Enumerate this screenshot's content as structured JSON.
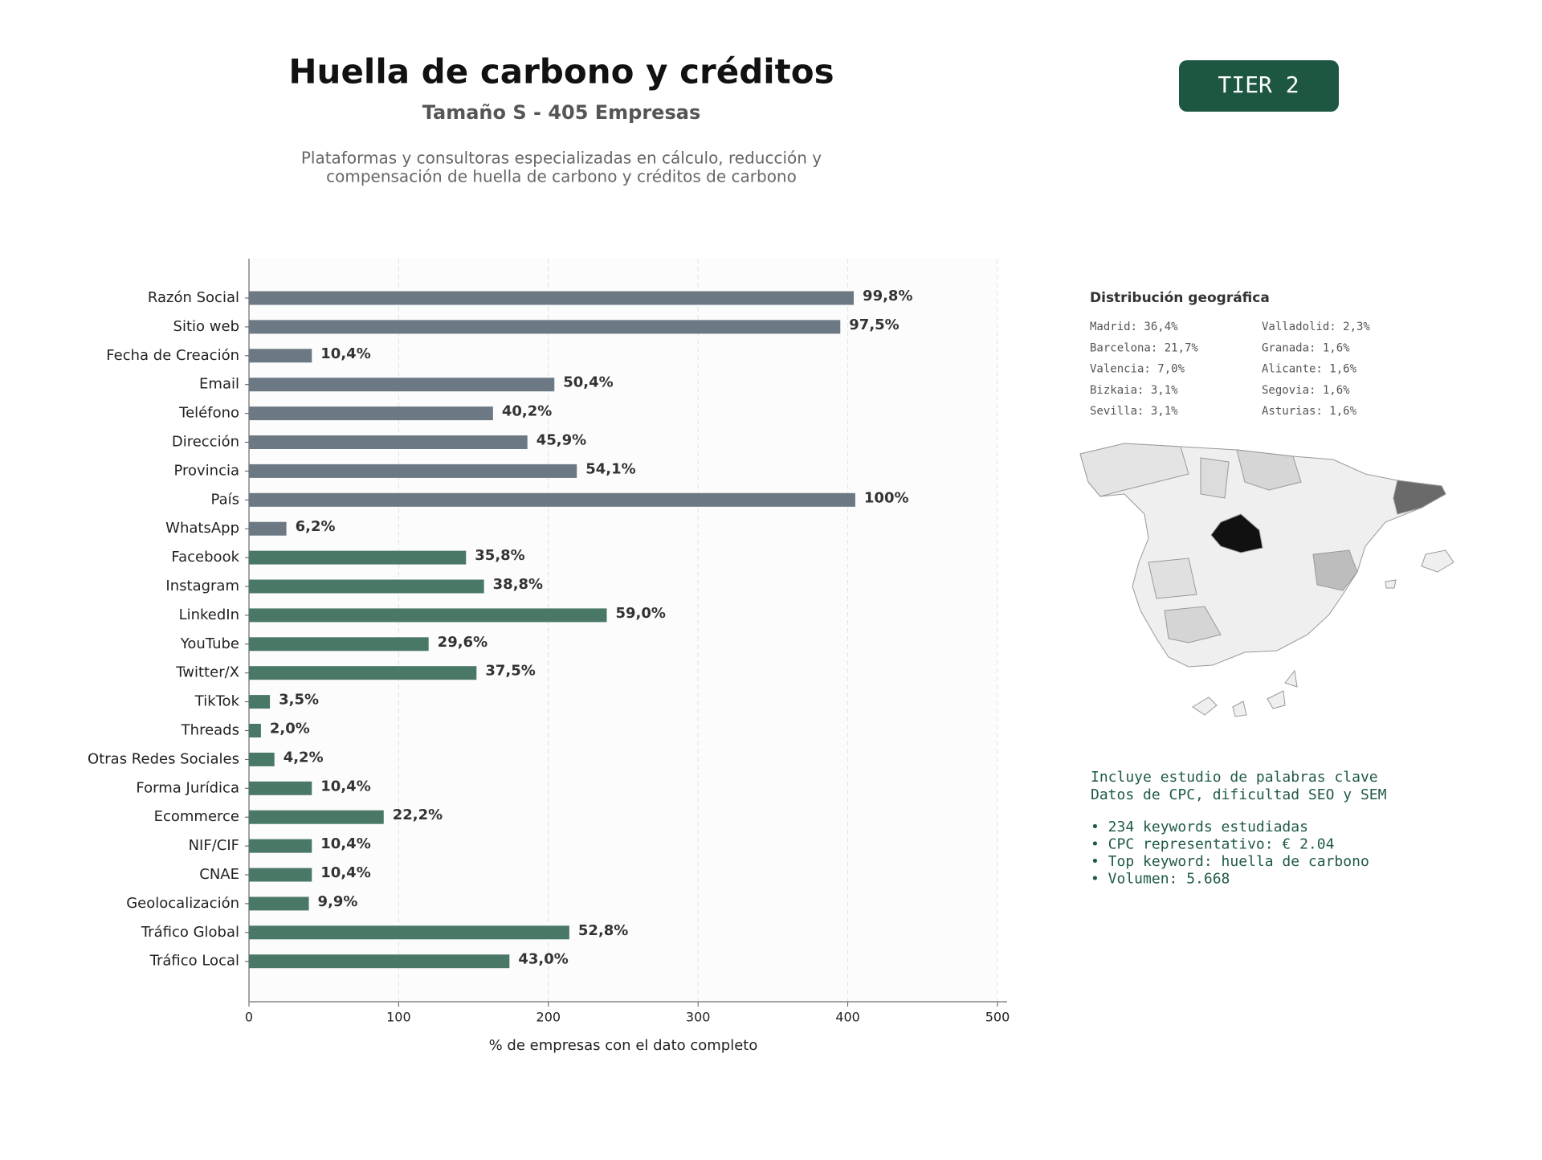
{
  "chart_data": {
    "type": "bar",
    "orientation": "horizontal",
    "title": "Huella de carbono y créditos",
    "subtitle": "Tamaño S - 405 Empresas",
    "description": [
      "Plataformas y consultoras especializadas en cálculo, reducción y",
      "compensación de huella de carbono y créditos de carbono"
    ],
    "xlabel": "% de empresas con el dato completo",
    "categories": [
      "Razón Social",
      "Sitio web",
      "Fecha de Creación",
      "Email",
      "Teléfono",
      "Dirección",
      "Provincia",
      "País",
      "WhatsApp",
      "Facebook",
      "Instagram",
      "LinkedIn",
      "YouTube",
      "Twitter/X",
      "TikTok",
      "Threads",
      "Otras Redes Sociales",
      "Forma Jurídica",
      "Ecommerce",
      "NIF/CIF",
      "CNAE",
      "Geolocalización",
      "Tráfico Global",
      "Tráfico Local"
    ],
    "values": [
      404,
      395,
      42,
      204,
      163,
      186,
      219,
      405,
      25,
      145,
      157,
      239,
      120,
      152,
      14,
      8,
      17,
      42,
      90,
      42,
      42,
      40,
      214,
      174
    ],
    "value_labels": [
      "99,8%",
      "97,5%",
      "10,4%",
      "50,4%",
      "40,2%",
      "45,9%",
      "54,1%",
      "100%",
      "6,2%",
      "35,8%",
      "38,8%",
      "59,0%",
      "29,6%",
      "37,5%",
      "3,5%",
      "2,0%",
      "4,2%",
      "10,4%",
      "22,2%",
      "10,4%",
      "10,4%",
      "9,9%",
      "52,8%",
      "43,0%"
    ],
    "colors": [
      "#6c7883",
      "#6c7883",
      "#6c7883",
      "#6c7883",
      "#6c7883",
      "#6c7883",
      "#6c7883",
      "#6c7883",
      "#6c7883",
      "#4a7866",
      "#4a7866",
      "#4a7866",
      "#4a7866",
      "#4a7866",
      "#4a7866",
      "#4a7866",
      "#4a7866",
      "#4a7866",
      "#4a7866",
      "#4a7866",
      "#4a7866",
      "#4a7866",
      "#4a7866",
      "#4a7866"
    ],
    "xlim": [
      0,
      500
    ],
    "xticks": [
      0,
      100,
      200,
      300,
      400,
      500
    ],
    "grid": true
  },
  "badge": "TIER 2",
  "geo": {
    "title": "Distribución geográfica",
    "columns": [
      [
        "Madrid: 36,4%",
        "Barcelona: 21,7%",
        "Valencia: 7,0%",
        "Bizkaia: 3,1%",
        "Sevilla: 3,1%"
      ],
      [
        "Valladolid: 2,3%",
        "Granada: 1,6%",
        "Alicante: 1,6%",
        "Segovia: 1,6%",
        "Asturias: 1,6%"
      ]
    ]
  },
  "keywords": {
    "lines": [
      "Incluye estudio de palabras clave",
      "Datos de CPC, dificultad SEO y SEM"
    ],
    "bullets": [
      "• 234 keywords estudiadas",
      "• CPC representativo: € 2.04",
      "• Top keyword: huella de carbono",
      "• Volumen: 5.668"
    ]
  }
}
